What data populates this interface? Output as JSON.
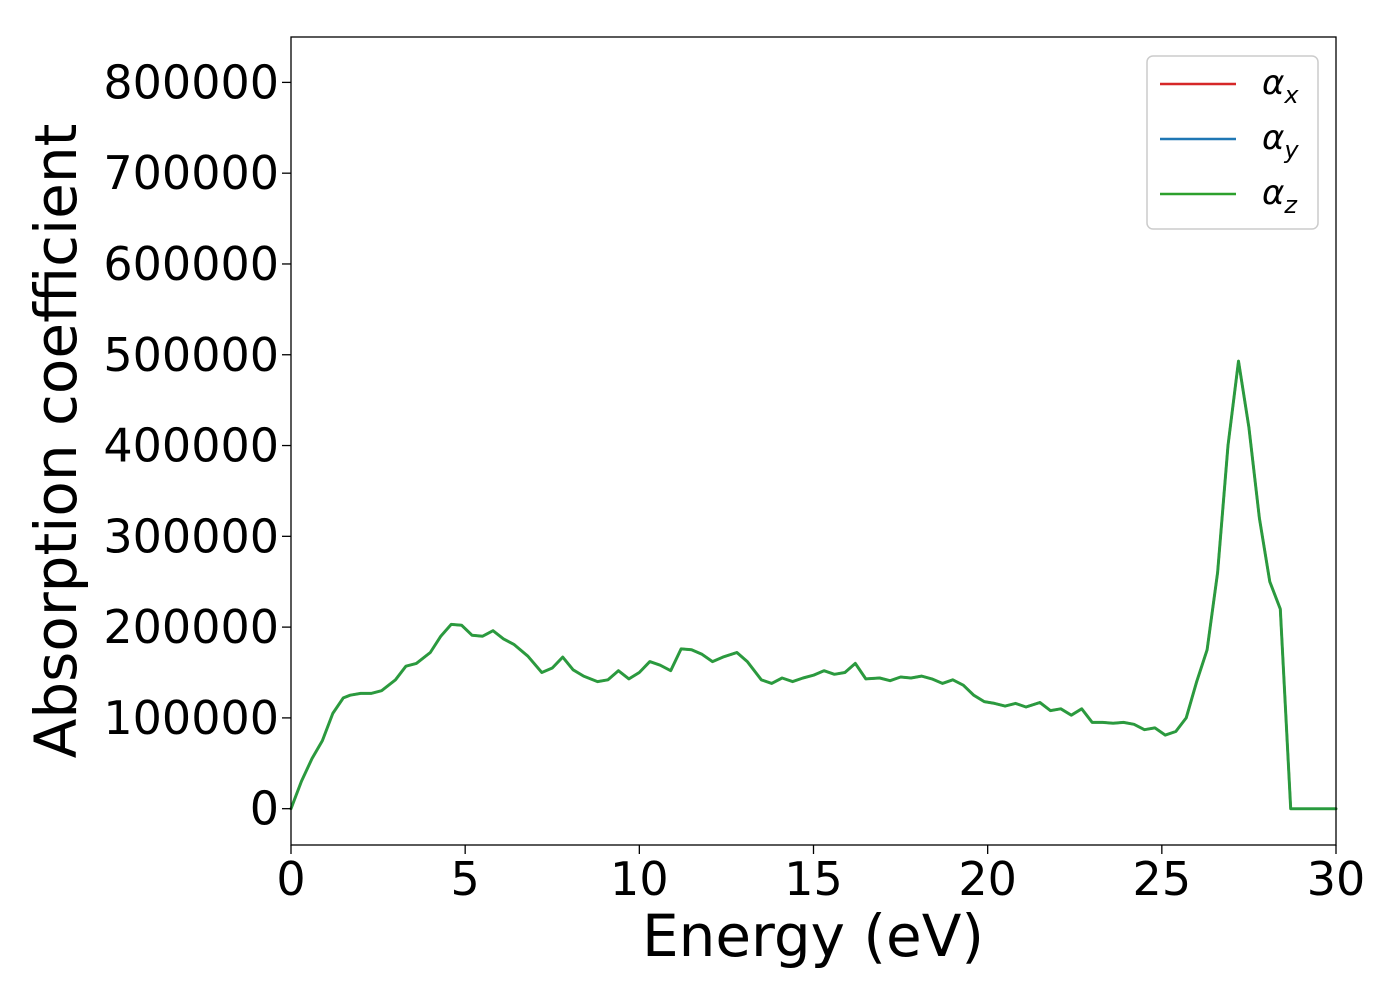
{
  "chart_data": {
    "type": "line",
    "title": "",
    "xlabel": "Energy (eV)",
    "ylabel": "Absorption coefficient",
    "xlim": [
      0,
      30
    ],
    "ylim": [
      -40000,
      850000
    ],
    "x_ticks": [
      0,
      5,
      10,
      15,
      20,
      25,
      30
    ],
    "y_ticks": [
      0,
      100000,
      200000,
      300000,
      400000,
      500000,
      600000,
      700000,
      800000
    ],
    "x_tick_labels": [
      "0",
      "5",
      "10",
      "15",
      "20",
      "25",
      "30"
    ],
    "y_tick_labels": [
      "0",
      "100000",
      "200000",
      "300000",
      "400000",
      "500000",
      "600000",
      "700000",
      "800000"
    ],
    "grid": false,
    "legend_position": "top-right",
    "x": [
      0,
      0.3,
      0.6,
      0.9,
      1.2,
      1.5,
      1.7,
      2,
      2.3,
      2.6,
      3,
      3.3,
      3.6,
      4,
      4.3,
      4.6,
      4.9,
      5.2,
      5.5,
      5.8,
      6.1,
      6.4,
      6.8,
      7.2,
      7.5,
      7.8,
      8.1,
      8.4,
      8.8,
      9.1,
      9.4,
      9.7,
      10,
      10.3,
      10.6,
      10.9,
      11.2,
      11.5,
      11.8,
      12.1,
      12.4,
      12.8,
      13.1,
      13.5,
      13.8,
      14.1,
      14.4,
      14.7,
      15,
      15.3,
      15.6,
      15.9,
      16.2,
      16.5,
      16.9,
      17.2,
      17.5,
      17.8,
      18.1,
      18.4,
      18.7,
      19,
      19.3,
      19.6,
      19.9,
      20.2,
      20.5,
      20.8,
      21.1,
      21.5,
      21.8,
      22.1,
      22.4,
      22.7,
      23,
      23.3,
      23.6,
      23.9,
      24.2,
      24.5,
      24.8,
      25.1,
      25.4,
      25.7,
      26,
      26.3,
      26.6,
      26.9,
      27.2,
      27.5,
      27.8,
      28.1,
      28.4,
      28.7,
      28.9,
      29.1,
      29.3,
      29.5,
      29.7,
      30
    ],
    "y": [
      0,
      30000,
      55000,
      75000,
      105000,
      122000,
      125000,
      127000,
      127000,
      130000,
      142000,
      157000,
      160000,
      172000,
      190000,
      203000,
      202000,
      191000,
      190000,
      196000,
      187000,
      181000,
      168000,
      150000,
      155000,
      167000,
      153000,
      146000,
      140000,
      142000,
      152000,
      143000,
      150000,
      162000,
      158000,
      152000,
      176000,
      175000,
      170000,
      162000,
      167000,
      172000,
      162000,
      142000,
      138000,
      144000,
      140000,
      144000,
      147000,
      152000,
      148000,
      150000,
      160000,
      143000,
      144000,
      141000,
      145000,
      144000,
      146000,
      143000,
      138000,
      142000,
      136000,
      125000,
      118000,
      116000,
      113000,
      116000,
      112000,
      117000,
      108000,
      110000,
      103000,
      110000,
      95000,
      95000,
      94000,
      95000,
      93000,
      87000,
      89000,
      81000,
      85000,
      100000,
      140000,
      175000,
      260000,
      400000,
      493000,
      420000,
      320000,
      250000,
      220000,
      0,
      0,
      0,
      0,
      0,
      0,
      0
    ],
    "series": [
      {
        "name": "α_x",
        "color": "#d62728"
      },
      {
        "name": "α_y",
        "color": "#1f77b4"
      },
      {
        "name": "α_z",
        "color": "#2ca02c"
      }
    ]
  }
}
